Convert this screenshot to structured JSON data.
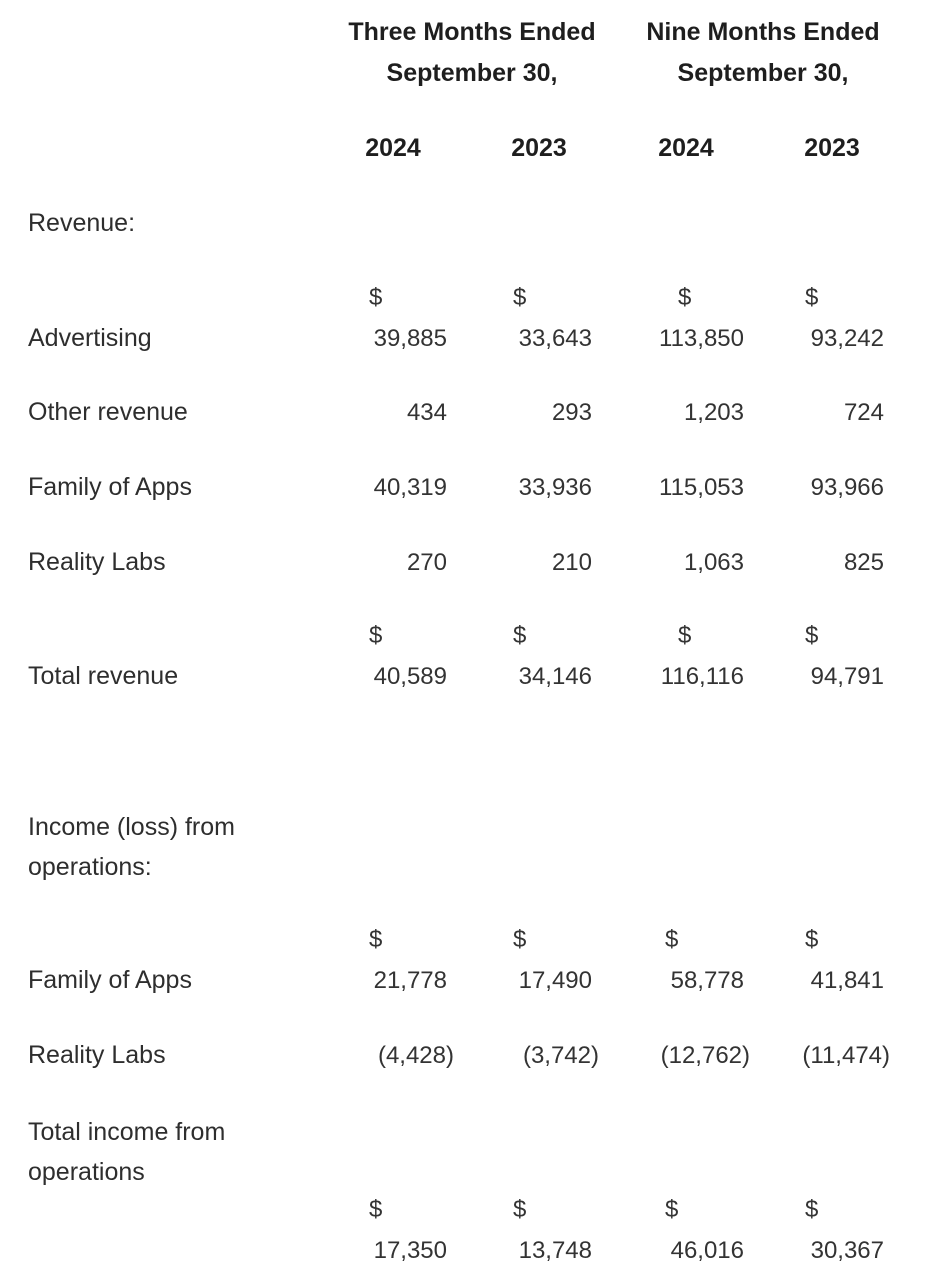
{
  "header": {
    "three_months_line1": "Three Months Ended",
    "three_months_line2": "September 30,",
    "nine_months_line1": "Nine Months Ended",
    "nine_months_line2": "September 30,",
    "years": [
      "2024",
      "2023",
      "2024",
      "2023"
    ]
  },
  "sections": {
    "revenue_label": "Revenue:",
    "income_label": "Income (loss) from operations:"
  },
  "rows": {
    "advertising": {
      "label": "Advertising",
      "values": [
        "39,885",
        "33,643",
        "113,850",
        "93,242"
      ]
    },
    "other_revenue": {
      "label": "Other revenue",
      "values": [
        "434",
        "293",
        "1,203",
        "724"
      ]
    },
    "family_of_apps_rev": {
      "label": "Family of Apps",
      "values": [
        "40,319",
        "33,936",
        "115,053",
        "93,966"
      ]
    },
    "reality_labs_rev": {
      "label": "Reality Labs",
      "values": [
        "270",
        "210",
        "1,063",
        "825"
      ]
    },
    "total_revenue": {
      "label": "Total revenue",
      "values": [
        "40,589",
        "34,146",
        "116,116",
        "94,791"
      ]
    },
    "family_of_apps_inc": {
      "label": "Family of Apps",
      "values": [
        "21,778",
        "17,490",
        "58,778",
        "41,841"
      ]
    },
    "reality_labs_inc": {
      "label": "Reality Labs",
      "values": [
        "(4,428)",
        "(3,742)",
        "(12,762)",
        "(11,474)"
      ]
    },
    "total_income": {
      "label": "Total income from operations",
      "values": [
        "17,350",
        "13,748",
        "46,016",
        "30,367"
      ]
    }
  },
  "currency_symbol": "$"
}
